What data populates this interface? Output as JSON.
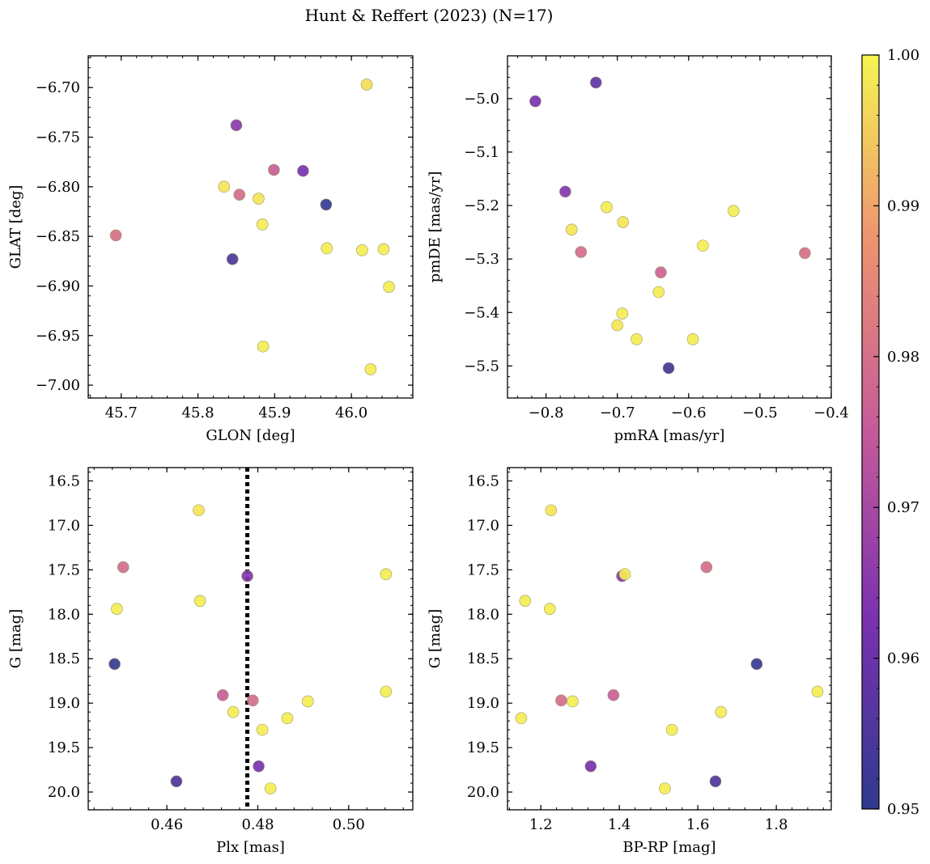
{
  "figure": {
    "title": "Hunt & Reffert (2023) (N=17)"
  },
  "colorbar": {
    "min": 0.95,
    "max": 1.0,
    "ticks": [
      0.95,
      0.96,
      0.97,
      0.98,
      0.99,
      1.0
    ],
    "tick_labels": [
      "0.95",
      "0.96",
      "0.97",
      "0.98",
      "0.99",
      "1.00"
    ],
    "colormap": "plasma"
  },
  "chart_data": [
    {
      "id": "sky",
      "type": "scatter",
      "xlabel": "GLON [deg]",
      "ylabel": "GLAT [deg]",
      "xlim": [
        45.657,
        46.08
      ],
      "ylim": [
        -7.013,
        -6.668
      ],
      "xticks": [
        45.7,
        45.8,
        45.9,
        46.0
      ],
      "xtick_labels": [
        "45.7",
        "45.8",
        "45.9",
        "46.0"
      ],
      "yticks": [
        -6.7,
        -6.75,
        -6.8,
        -6.85,
        -6.9,
        -6.95,
        -7.0
      ],
      "ytick_labels": [
        "−6.70",
        "−6.75",
        "−6.80",
        "−6.85",
        "−6.90",
        "−6.95",
        "−7.00"
      ],
      "y_inverted": false,
      "points": [
        {
          "x": 45.85,
          "y": -6.738,
          "c": 0.965
        },
        {
          "x": 45.899,
          "y": -6.783,
          "c": 0.976
        },
        {
          "x": 45.937,
          "y": -6.784,
          "c": 0.962
        },
        {
          "x": 45.834,
          "y": -6.8,
          "c": 0.998
        },
        {
          "x": 45.854,
          "y": -6.808,
          "c": 0.979
        },
        {
          "x": 45.879,
          "y": -6.812,
          "c": 0.998
        },
        {
          "x": 45.967,
          "y": -6.818,
          "c": 0.951
        },
        {
          "x": 45.884,
          "y": -6.838,
          "c": 0.999
        },
        {
          "x": 45.693,
          "y": -6.849,
          "c": 0.98
        },
        {
          "x": 45.968,
          "y": -6.862,
          "c": 0.999
        },
        {
          "x": 46.014,
          "y": -6.864,
          "c": 0.999
        },
        {
          "x": 46.042,
          "y": -6.863,
          "c": 0.999
        },
        {
          "x": 45.845,
          "y": -6.873,
          "c": 0.955
        },
        {
          "x": 46.049,
          "y": -6.901,
          "c": 0.999
        },
        {
          "x": 45.885,
          "y": -6.961,
          "c": 0.999
        },
        {
          "x": 46.02,
          "y": -6.697,
          "c": 0.997
        },
        {
          "x": 46.025,
          "y": -6.984,
          "c": 0.999
        }
      ]
    },
    {
      "id": "pm",
      "type": "scatter",
      "xlabel": "pmRA [mas/yr]",
      "ylabel": "pmDE [mas/yr]",
      "xlim": [
        -0.854,
        -0.4
      ],
      "ylim": [
        -5.56,
        -4.92
      ],
      "xticks": [
        -0.8,
        -0.7,
        -0.6,
        -0.5,
        -0.4
      ],
      "xtick_labels": [
        "−0.8",
        "−0.7",
        "−0.6",
        "−0.5",
        "−0.4"
      ],
      "yticks": [
        -5.0,
        -5.1,
        -5.2,
        -5.3,
        -5.4,
        -5.5
      ],
      "ytick_labels": [
        "−5.0",
        "−5.1",
        "−5.2",
        "−5.3",
        "−5.4",
        "−5.5"
      ],
      "y_inverted": false,
      "points": [
        {
          "x": -0.73,
          "y": -4.97,
          "c": 0.958
        },
        {
          "x": -0.815,
          "y": -5.005,
          "c": 0.962
        },
        {
          "x": -0.773,
          "y": -5.174,
          "c": 0.964
        },
        {
          "x": -0.715,
          "y": -5.203,
          "c": 0.999
        },
        {
          "x": -0.692,
          "y": -5.231,
          "c": 0.998
        },
        {
          "x": -0.764,
          "y": -5.245,
          "c": 0.998
        },
        {
          "x": -0.537,
          "y": -5.21,
          "c": 0.999
        },
        {
          "x": -0.58,
          "y": -5.275,
          "c": 0.999
        },
        {
          "x": -0.751,
          "y": -5.287,
          "c": 0.979
        },
        {
          "x": -0.437,
          "y": -5.289,
          "c": 0.98
        },
        {
          "x": -0.639,
          "y": -5.325,
          "c": 0.977
        },
        {
          "x": -0.642,
          "y": -5.362,
          "c": 0.999
        },
        {
          "x": -0.693,
          "y": -5.402,
          "c": 0.999
        },
        {
          "x": -0.7,
          "y": -5.424,
          "c": 0.998
        },
        {
          "x": -0.673,
          "y": -5.45,
          "c": 0.999
        },
        {
          "x": -0.594,
          "y": -5.45,
          "c": 0.999
        },
        {
          "x": -0.628,
          "y": -5.504,
          "c": 0.953
        }
      ]
    },
    {
      "id": "plx",
      "type": "scatter",
      "xlabel": "Plx [mas]",
      "ylabel": "G [mag]",
      "xlim": [
        0.4427,
        0.5141
      ],
      "ylim": [
        16.35,
        20.2
      ],
      "xticks": [
        0.46,
        0.48,
        0.5
      ],
      "xtick_labels": [
        "0.46",
        "0.48",
        "0.50"
      ],
      "yticks": [
        16.5,
        17.0,
        17.5,
        18.0,
        18.5,
        19.0,
        19.5,
        20.0
      ],
      "ytick_labels": [
        "16.5",
        "17.0",
        "17.5",
        "18.0",
        "18.5",
        "19.0",
        "19.5",
        "20.0"
      ],
      "y_inverted": true,
      "vline": {
        "x": 0.4777,
        "style": "dotted"
      },
      "points": [
        {
          "x": 0.467,
          "y": 16.83,
          "c": 0.998
        },
        {
          "x": 0.4504,
          "y": 17.47,
          "c": 0.979
        },
        {
          "x": 0.5082,
          "y": 17.55,
          "c": 0.999
        },
        {
          "x": 0.4777,
          "y": 17.57,
          "c": 0.964
        },
        {
          "x": 0.4673,
          "y": 17.85,
          "c": 0.999
        },
        {
          "x": 0.449,
          "y": 17.94,
          "c": 0.999
        },
        {
          "x": 0.4485,
          "y": 18.56,
          "c": 0.951
        },
        {
          "x": 0.5082,
          "y": 18.87,
          "c": 0.999
        },
        {
          "x": 0.4723,
          "y": 18.91,
          "c": 0.976
        },
        {
          "x": 0.4789,
          "y": 18.97,
          "c": 0.979
        },
        {
          "x": 0.491,
          "y": 18.98,
          "c": 0.999
        },
        {
          "x": 0.4746,
          "y": 19.1,
          "c": 0.999
        },
        {
          "x": 0.4865,
          "y": 19.17,
          "c": 0.999
        },
        {
          "x": 0.481,
          "y": 19.3,
          "c": 0.999
        },
        {
          "x": 0.4802,
          "y": 19.71,
          "c": 0.962
        },
        {
          "x": 0.4621,
          "y": 19.88,
          "c": 0.955
        },
        {
          "x": 0.4828,
          "y": 19.96,
          "c": 0.999
        }
      ]
    },
    {
      "id": "cmd",
      "type": "scatter",
      "xlabel": "BP-RP [mag]",
      "ylabel": "G [mag]",
      "xlim": [
        1.115,
        1.94
      ],
      "ylim": [
        16.35,
        20.2
      ],
      "xticks": [
        1.2,
        1.4,
        1.6,
        1.8
      ],
      "xtick_labels": [
        "1.2",
        "1.4",
        "1.6",
        "1.8"
      ],
      "yticks": [
        16.5,
        17.0,
        17.5,
        18.0,
        18.5,
        19.0,
        19.5,
        20.0
      ],
      "ytick_labels": [
        "16.5",
        "17.0",
        "17.5",
        "18.0",
        "18.5",
        "19.0",
        "19.5",
        "20.0"
      ],
      "y_inverted": true,
      "points": [
        {
          "x": 1.226,
          "y": 16.83,
          "c": 0.998
        },
        {
          "x": 1.622,
          "y": 17.47,
          "c": 0.979
        },
        {
          "x": 1.407,
          "y": 17.57,
          "c": 0.964
        },
        {
          "x": 1.414,
          "y": 17.55,
          "c": 0.999
        },
        {
          "x": 1.16,
          "y": 17.85,
          "c": 0.999
        },
        {
          "x": 1.223,
          "y": 17.94,
          "c": 0.999
        },
        {
          "x": 1.75,
          "y": 18.56,
          "c": 0.951
        },
        {
          "x": 1.905,
          "y": 18.87,
          "c": 0.999
        },
        {
          "x": 1.385,
          "y": 18.91,
          "c": 0.976
        },
        {
          "x": 1.252,
          "y": 18.97,
          "c": 0.979
        },
        {
          "x": 1.281,
          "y": 18.98,
          "c": 0.999
        },
        {
          "x": 1.659,
          "y": 19.1,
          "c": 0.999
        },
        {
          "x": 1.15,
          "y": 19.17,
          "c": 0.999
        },
        {
          "x": 1.534,
          "y": 19.3,
          "c": 0.999
        },
        {
          "x": 1.327,
          "y": 19.71,
          "c": 0.962
        },
        {
          "x": 1.645,
          "y": 19.88,
          "c": 0.955
        },
        {
          "x": 1.516,
          "y": 19.96,
          "c": 0.999
        }
      ]
    }
  ]
}
